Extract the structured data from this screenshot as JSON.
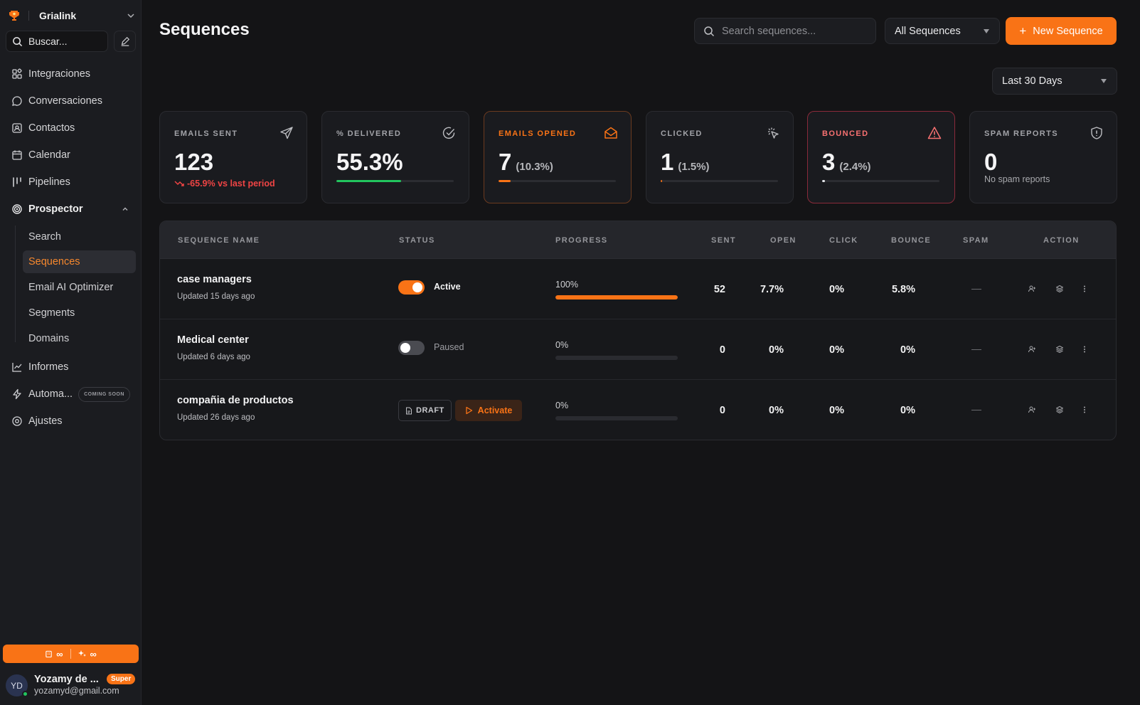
{
  "workspace": {
    "name": "Grialink"
  },
  "sidebar": {
    "search_label": "Buscar...",
    "items": [
      {
        "label": "Integraciones",
        "icon": "integrations-icon"
      },
      {
        "label": "Conversaciones",
        "icon": "chat-icon"
      },
      {
        "label": "Contactos",
        "icon": "contacts-icon"
      },
      {
        "label": "Calendar",
        "icon": "calendar-icon"
      },
      {
        "label": "Pipelines",
        "icon": "pipelines-icon"
      },
      {
        "label": "Prospector",
        "icon": "target-icon"
      },
      {
        "label": "Informes",
        "icon": "chart-icon"
      },
      {
        "label": "Automa...",
        "icon": "bolt-icon",
        "badge": "COMING SOON"
      },
      {
        "label": "Ajustes",
        "icon": "settings-icon"
      }
    ],
    "prospector_sub": [
      {
        "label": "Search"
      },
      {
        "label": "Sequences",
        "active": true
      },
      {
        "label": "Email AI Optimizer"
      },
      {
        "label": "Segments"
      },
      {
        "label": "Domains"
      }
    ],
    "credits": {
      "a": "∞",
      "b": "∞"
    },
    "user": {
      "initials": "YD",
      "name": "Yozamy de ...",
      "email": "yozamyd@gmail.com",
      "badge": "Super"
    }
  },
  "header": {
    "title": "Sequences",
    "search_placeholder": "Search sequences...",
    "filter_value": "All Sequences",
    "new_button": "New Sequence",
    "period_value": "Last 30 Days"
  },
  "stats": [
    {
      "label": "EMAILS SENT",
      "value": "123",
      "trend": "-65.9% vs last period",
      "icon": "send-icon"
    },
    {
      "label": "% DELIVERED",
      "value": "55.3%",
      "progress": 0.553,
      "bar_color": "#22c55e",
      "icon": "check-circle-icon"
    },
    {
      "label": "EMAILS OPENED",
      "value": "7",
      "sub": "(10.3%)",
      "progress": 0.103,
      "bar_color": "#f97316",
      "icon": "mail-open-icon",
      "accent": "#f97316"
    },
    {
      "label": "CLICKED",
      "value": "1",
      "sub": "(1.5%)",
      "progress": 0.015,
      "bar_color": "#f97316",
      "icon": "cursor-click-icon"
    },
    {
      "label": "BOUNCED",
      "value": "3",
      "sub": "(2.4%)",
      "progress": 0.024,
      "bar_color": "#e5e7eb",
      "icon": "warning-icon",
      "accent": "#f87171"
    },
    {
      "label": "SPAM REPORTS",
      "value": "0",
      "note": "No spam reports",
      "icon": "shield-icon"
    }
  ],
  "table": {
    "columns": [
      "SEQUENCE NAME",
      "STATUS",
      "PROGRESS",
      "SENT",
      "OPEN",
      "CLICK",
      "BOUNCE",
      "SPAM",
      "ACTION"
    ],
    "rows": [
      {
        "name": "case managers",
        "updated": "Updated 15 days ago",
        "status": "Active",
        "toggle_on": true,
        "progress_label": "100%",
        "progress": 1.0,
        "sent": "52",
        "open": "7.7%",
        "click": "0%",
        "bounce": "5.8%",
        "spam": "—"
      },
      {
        "name": "Medical center",
        "updated": "Updated 6 days ago",
        "status": "Paused",
        "toggle_on": false,
        "progress_label": "0%",
        "progress": 0,
        "sent": "0",
        "open": "0%",
        "click": "0%",
        "bounce": "0%",
        "spam": "—"
      },
      {
        "name": "compañia de productos",
        "updated": "Updated 26 days ago",
        "draft_label": "DRAFT",
        "activate_label": "Activate",
        "progress_label": "0%",
        "progress": 0,
        "sent": "0",
        "open": "0%",
        "click": "0%",
        "bounce": "0%",
        "spam": "—"
      }
    ]
  },
  "colors": {
    "accent": "#f97316",
    "background": "#141416",
    "sidebar": "#1b1c20",
    "danger": "#ef4444",
    "success": "#22c55e"
  }
}
